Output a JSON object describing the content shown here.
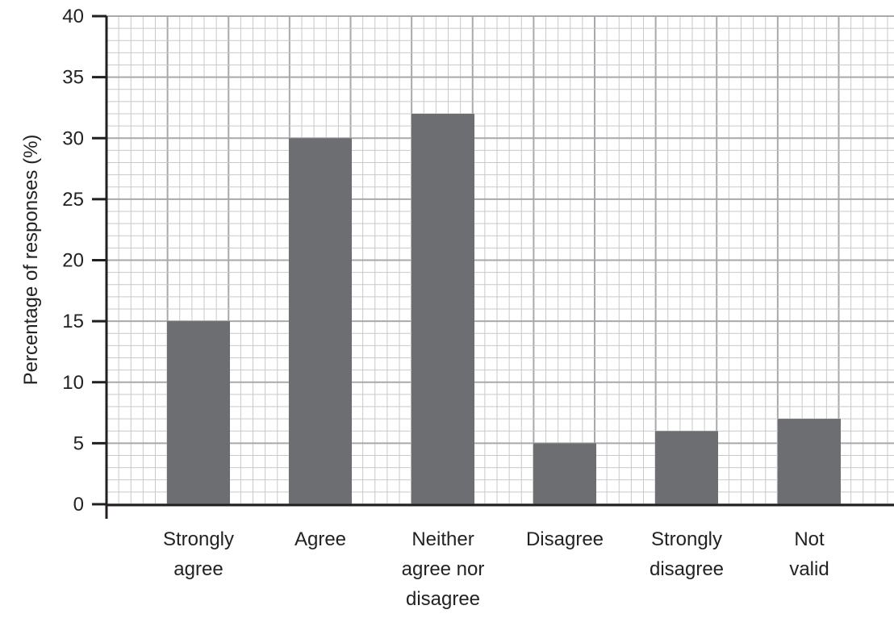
{
  "chart_data": {
    "type": "bar",
    "categories": [
      [
        "Strongly",
        "agree"
      ],
      [
        "Agree"
      ],
      [
        "Neither",
        "agree nor",
        "disagree"
      ],
      [
        "Disagree"
      ],
      [
        "Strongly",
        "disagree"
      ],
      [
        "Not",
        "valid"
      ]
    ],
    "values": [
      15,
      30,
      32,
      5,
      6,
      7
    ],
    "title": "",
    "xlabel": "",
    "ylabel": "Percentage of responses (%)",
    "ylim": [
      0,
      40
    ],
    "yticks": [
      0,
      5,
      10,
      15,
      20,
      25,
      30,
      35,
      40
    ],
    "grid": true,
    "legend": "none",
    "colors": {
      "bar": "#6d6e71",
      "grid_major": "#a7a9ac",
      "grid_minor": "#c8c9cb",
      "axis": "#231f20"
    }
  }
}
